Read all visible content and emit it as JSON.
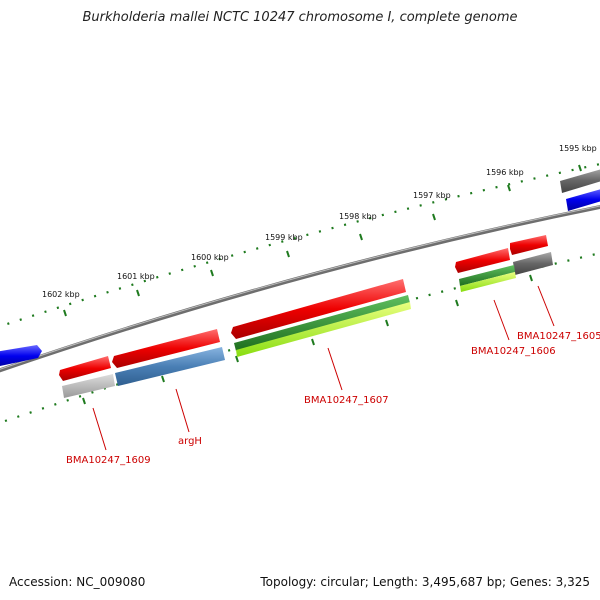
{
  "title": "Burkholderia mallei NCTC 10247 chromosome I, complete genome",
  "ticks": [
    "1595 kbp",
    "1596 kbp",
    "1597 kbp",
    "1598 kbp",
    "1599 kbp",
    "1600 kbp",
    "1601 kbp",
    "1602 kbp"
  ],
  "genes": [
    "BMA10247_1605",
    "BMA10247_1606",
    "BMA10247_1607",
    "argH",
    "BMA10247_1609"
  ],
  "footer": {
    "accession": "Accession: NC_009080",
    "summary": "Topology: circular; Length: 3,495,687 bp; Genes: 3,325"
  },
  "colors": {
    "backbone": "#777777",
    "tick": "#1e7a1e",
    "cds": "#dd0000",
    "blue_cds": "#1010ee",
    "gray_feature": "#666666",
    "steel_feature": "#4a7fb5",
    "dark_green": "#2e8b2e",
    "light_green": "#aaff33",
    "label": "#cc0000"
  }
}
